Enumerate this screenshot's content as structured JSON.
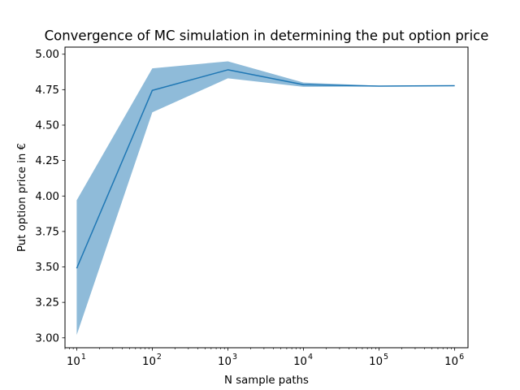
{
  "chart_data": {
    "type": "line",
    "title": "Convergence of MC simulation in determining the put option price",
    "xlabel": "N sample paths",
    "ylabel": "Put option price in €",
    "xscale": "log",
    "xlim": [
      7,
      1500000
    ],
    "ylim": [
      2.93,
      5.05
    ],
    "x": [
      10,
      100,
      1000,
      10000,
      100000,
      1000000
    ],
    "x_tick_labels": [
      {
        "base": "10",
        "exp": "1"
      },
      {
        "base": "10",
        "exp": "2"
      },
      {
        "base": "10",
        "exp": "3"
      },
      {
        "base": "10",
        "exp": "4"
      },
      {
        "base": "10",
        "exp": "5"
      },
      {
        "base": "10",
        "exp": "6"
      }
    ],
    "y_ticks": [
      3.0,
      3.25,
      3.5,
      3.75,
      4.0,
      4.25,
      4.5,
      4.75,
      5.0
    ],
    "y_tick_labels": [
      "3.00",
      "3.25",
      "3.50",
      "3.75",
      "4.00",
      "4.25",
      "4.50",
      "4.75",
      "5.00"
    ],
    "series": [
      {
        "values": [
          3.49,
          4.745,
          4.89,
          4.785,
          4.775,
          4.778
        ],
        "lower": [
          3.02,
          4.59,
          4.83,
          4.77,
          4.772,
          4.776
        ],
        "upper": [
          3.97,
          4.9,
          4.95,
          4.8,
          4.778,
          4.78
        ],
        "color": "#1f77b4",
        "band_color": "#1f77b4",
        "band_opacity": 0.5
      }
    ],
    "grid": false,
    "legend": false
  }
}
